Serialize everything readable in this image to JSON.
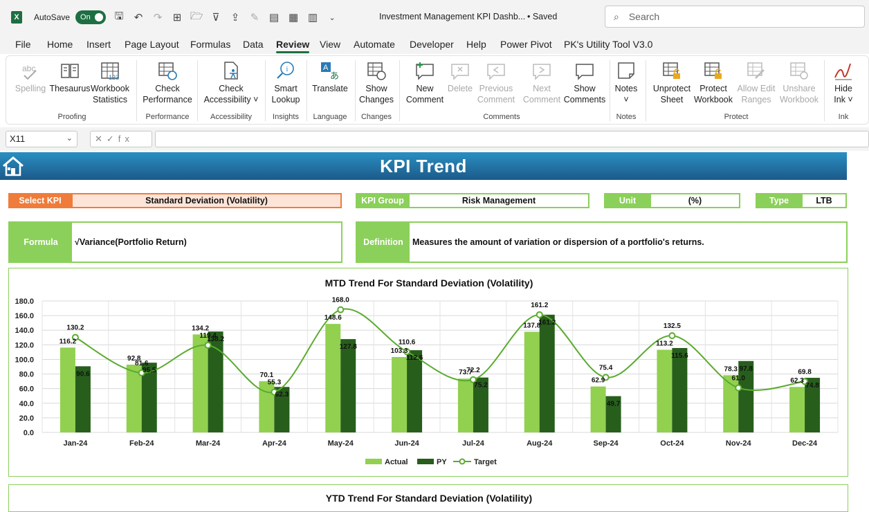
{
  "titlebar": {
    "autosave_label": "AutoSave",
    "toggle_label": "On",
    "doc_title": "Investment Management KPI Dashb...",
    "saved_status": "• Saved",
    "search_placeholder": "Search"
  },
  "menu": {
    "tabs": [
      "File",
      "Home",
      "Insert",
      "Page Layout",
      "Formulas",
      "Data",
      "Review",
      "View",
      "Automate",
      "Developer",
      "Help",
      "Power Pivot",
      "PK's Utility Tool V3.0"
    ],
    "active_tab": "Review"
  },
  "ribbon": {
    "buttons": [
      {
        "l1": "Spelling",
        "l2": ""
      },
      {
        "l1": "Thesaurus",
        "l2": ""
      },
      {
        "l1": "Workbook",
        "l2": "Statistics"
      },
      {
        "l1": "Check",
        "l2": "Performance"
      },
      {
        "l1": "Check",
        "l2": "Accessibility ˅"
      },
      {
        "l1": "Smart",
        "l2": "Lookup"
      },
      {
        "l1": "Translate",
        "l2": ""
      },
      {
        "l1": "Show",
        "l2": "Changes"
      },
      {
        "l1": "New",
        "l2": "Comment"
      },
      {
        "l1": "Delete",
        "l2": ""
      },
      {
        "l1": "Previous",
        "l2": "Comment"
      },
      {
        "l1": "Next",
        "l2": "Comment"
      },
      {
        "l1": "Show",
        "l2": "Comments"
      },
      {
        "l1": "Notes",
        "l2": "˅"
      },
      {
        "l1": "Unprotect",
        "l2": "Sheet"
      },
      {
        "l1": "Protect",
        "l2": "Workbook"
      },
      {
        "l1": "Allow Edit",
        "l2": "Ranges"
      },
      {
        "l1": "Unshare",
        "l2": "Workbook"
      },
      {
        "l1": "Hide",
        "l2": "Ink ˅"
      }
    ],
    "groups": [
      "Proofing",
      "Performance",
      "Accessibility",
      "Insights",
      "Language",
      "Changes",
      "Comments",
      "Notes",
      "Protect",
      "Ink"
    ]
  },
  "formula_bar": {
    "cell_ref": "X11",
    "fx_symbols": "✕✓fx",
    "formula": ""
  },
  "sheet": {
    "title": "KPI Trend",
    "select_kpi_label": "Select KPI",
    "select_kpi_value": "Standard Deviation (Volatility)",
    "kpi_group_label": "KPI Group",
    "kpi_group_value": "Risk Management",
    "unit_label": "Unit",
    "unit_value": "(%)",
    "type_label": "Type",
    "type_value": "LTB",
    "formula_label": "Formula",
    "formula_value": "√Variance(Portfolio Return)",
    "definition_label": "Definition",
    "definition_value": "Measures the amount of variation or dispersion of a portfolio's returns.",
    "second_chart_title": "YTD Trend For Standard Deviation (Volatility)"
  },
  "colors": {
    "actual": "#92d050",
    "py": "#275e1c",
    "target": "#5aab2f",
    "select_label": "#ef7c3a",
    "select_fill": "#fde4d8",
    "green_label": "#8bd05a"
  },
  "chart_data": {
    "type": "bar",
    "title": "MTD Trend For Standard Deviation (Volatility)",
    "categories": [
      "Jan-24",
      "Feb-24",
      "Mar-24",
      "Apr-24",
      "May-24",
      "Jun-24",
      "Jul-24",
      "Aug-24",
      "Sep-24",
      "Oct-24",
      "Nov-24",
      "Dec-24"
    ],
    "series": [
      {
        "name": "Actual",
        "type": "bar",
        "values": [
          116.2,
          92.8,
          134.2,
          70.1,
          148.6,
          103.3,
          73.7,
          137.8,
          62.9,
          113.2,
          78.3,
          62.3
        ]
      },
      {
        "name": "PY",
        "type": "bar",
        "values": [
          90.6,
          95.5,
          138.2,
          62.3,
          127.8,
          112.6,
          75.2,
          161.2,
          49.7,
          115.6,
          97.8,
          74.8
        ]
      },
      {
        "name": "Target",
        "type": "line",
        "values": [
          130.2,
          81.6,
          119.4,
          55.3,
          168.0,
          110.6,
          72.2,
          161.2,
          75.4,
          132.5,
          61.0,
          69.8
        ]
      }
    ],
    "ylim": [
      0,
      180
    ],
    "yticks": [
      "0.0",
      "20.0",
      "40.0",
      "60.0",
      "80.0",
      "100.0",
      "120.0",
      "140.0",
      "160.0",
      "180.0"
    ],
    "grid": true,
    "legend": "bottom"
  }
}
